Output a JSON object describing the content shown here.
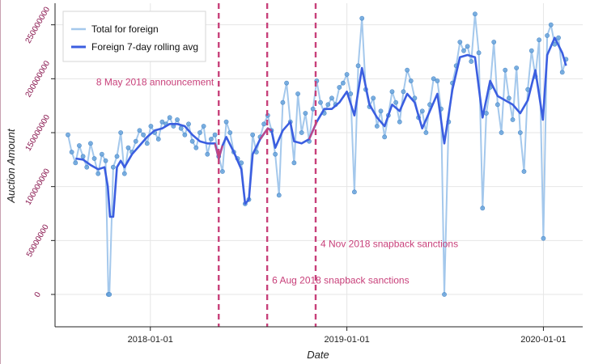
{
  "chart_data": {
    "type": "line",
    "xlabel": "Date",
    "ylabel": "Auction Amount",
    "xlim": [
      "2017-07-08",
      "2020-03-14"
    ],
    "ylim": [
      -30000000,
      270000000
    ],
    "x_ticks": [
      {
        "date": "2018-01-01",
        "label": "2018-01-01"
      },
      {
        "date": "2019-01-01",
        "label": "2019-01-01"
      },
      {
        "date": "2020-01-01",
        "label": "2020-01-01"
      }
    ],
    "y_ticks": [
      {
        "value": 0,
        "label": "0"
      },
      {
        "value": 50000000,
        "label": "50000000"
      },
      {
        "value": 100000000,
        "label": "100000000"
      },
      {
        "value": 150000000,
        "label": "150000000"
      },
      {
        "value": 200000000,
        "label": "200000000"
      },
      {
        "value": 250000000,
        "label": "250000000"
      }
    ],
    "grid": true,
    "legend_position": "top-left",
    "series": [
      {
        "name": "Total for foreign",
        "color": "#a4c8ec",
        "marker_color": "#6aa4dc",
        "points": [
          [
            "2017-08-01",
            148000000
          ],
          [
            "2017-08-08",
            132000000
          ],
          [
            "2017-08-15",
            122000000
          ],
          [
            "2017-08-22",
            138000000
          ],
          [
            "2017-08-29",
            128000000
          ],
          [
            "2017-09-05",
            118000000
          ],
          [
            "2017-09-12",
            140000000
          ],
          [
            "2017-09-19",
            126000000
          ],
          [
            "2017-09-26",
            112000000
          ],
          [
            "2017-10-03",
            130000000
          ],
          [
            "2017-10-10",
            124000000
          ],
          [
            "2017-10-15",
            0
          ],
          [
            "2017-10-17",
            0
          ],
          [
            "2017-10-24",
            118000000
          ],
          [
            "2017-10-31",
            128000000
          ],
          [
            "2017-11-07",
            150000000
          ],
          [
            "2017-11-14",
            112000000
          ],
          [
            "2017-11-21",
            136000000
          ],
          [
            "2017-11-28",
            132000000
          ],
          [
            "2017-12-05",
            142000000
          ],
          [
            "2017-12-12",
            152000000
          ],
          [
            "2017-12-19",
            148000000
          ],
          [
            "2017-12-26",
            140000000
          ],
          [
            "2018-01-02",
            156000000
          ],
          [
            "2018-01-09",
            150000000
          ],
          [
            "2018-01-16",
            144000000
          ],
          [
            "2018-01-23",
            160000000
          ],
          [
            "2018-01-30",
            158000000
          ],
          [
            "2018-02-06",
            164000000
          ],
          [
            "2018-02-13",
            156000000
          ],
          [
            "2018-02-20",
            162000000
          ],
          [
            "2018-02-27",
            154000000
          ],
          [
            "2018-03-06",
            148000000
          ],
          [
            "2018-03-13",
            158000000
          ],
          [
            "2018-03-20",
            142000000
          ],
          [
            "2018-03-27",
            136000000
          ],
          [
            "2018-04-03",
            150000000
          ],
          [
            "2018-04-10",
            156000000
          ],
          [
            "2018-04-17",
            130000000
          ],
          [
            "2018-04-24",
            144000000
          ],
          [
            "2018-05-01",
            148000000
          ],
          [
            "2018-05-08",
            128000000
          ],
          [
            "2018-05-15",
            114000000
          ],
          [
            "2018-05-22",
            160000000
          ],
          [
            "2018-05-29",
            150000000
          ],
          [
            "2018-06-05",
            132000000
          ],
          [
            "2018-06-12",
            126000000
          ],
          [
            "2018-06-19",
            122000000
          ],
          [
            "2018-06-26",
            84000000
          ],
          [
            "2018-07-03",
            88000000
          ],
          [
            "2018-07-10",
            148000000
          ],
          [
            "2018-07-17",
            132000000
          ],
          [
            "2018-07-24",
            146000000
          ],
          [
            "2018-07-31",
            158000000
          ],
          [
            "2018-08-07",
            166000000
          ],
          [
            "2018-08-14",
            152000000
          ],
          [
            "2018-08-21",
            130000000
          ],
          [
            "2018-08-28",
            92000000
          ],
          [
            "2018-09-04",
            178000000
          ],
          [
            "2018-09-11",
            196000000
          ],
          [
            "2018-09-18",
            160000000
          ],
          [
            "2018-09-25",
            122000000
          ],
          [
            "2018-10-02",
            186000000
          ],
          [
            "2018-10-09",
            150000000
          ],
          [
            "2018-10-16",
            168000000
          ],
          [
            "2018-10-23",
            142000000
          ],
          [
            "2018-10-30",
            172000000
          ],
          [
            "2018-11-06",
            198000000
          ],
          [
            "2018-11-13",
            178000000
          ],
          [
            "2018-11-20",
            168000000
          ],
          [
            "2018-11-27",
            176000000
          ],
          [
            "2018-12-04",
            182000000
          ],
          [
            "2018-12-11",
            176000000
          ],
          [
            "2018-12-18",
            192000000
          ],
          [
            "2018-12-25",
            196000000
          ],
          [
            "2019-01-01",
            204000000
          ],
          [
            "2019-01-08",
            186000000
          ],
          [
            "2019-01-15",
            95000000
          ],
          [
            "2019-01-22",
            212000000
          ],
          [
            "2019-01-29",
            256000000
          ],
          [
            "2019-02-05",
            190000000
          ],
          [
            "2019-02-12",
            174000000
          ],
          [
            "2019-02-19",
            182000000
          ],
          [
            "2019-02-26",
            156000000
          ],
          [
            "2019-03-05",
            170000000
          ],
          [
            "2019-03-12",
            146000000
          ],
          [
            "2019-03-19",
            166000000
          ],
          [
            "2019-03-26",
            188000000
          ],
          [
            "2019-04-02",
            178000000
          ],
          [
            "2019-04-09",
            160000000
          ],
          [
            "2019-04-16",
            188000000
          ],
          [
            "2019-04-23",
            208000000
          ],
          [
            "2019-04-30",
            198000000
          ],
          [
            "2019-05-07",
            182000000
          ],
          [
            "2019-05-14",
            164000000
          ],
          [
            "2019-05-21",
            170000000
          ],
          [
            "2019-05-28",
            150000000
          ],
          [
            "2019-06-04",
            176000000
          ],
          [
            "2019-06-11",
            200000000
          ],
          [
            "2019-06-18",
            198000000
          ],
          [
            "2019-06-25",
            172000000
          ],
          [
            "2019-07-01",
            0
          ],
          [
            "2019-07-09",
            160000000
          ],
          [
            "2019-07-16",
            196000000
          ],
          [
            "2019-07-23",
            212000000
          ],
          [
            "2019-07-30",
            234000000
          ],
          [
            "2019-08-06",
            226000000
          ],
          [
            "2019-08-13",
            230000000
          ],
          [
            "2019-08-20",
            216000000
          ],
          [
            "2019-08-27",
            260000000
          ],
          [
            "2019-09-03",
            224000000
          ],
          [
            "2019-09-10",
            80000000
          ],
          [
            "2019-09-17",
            168000000
          ],
          [
            "2019-09-24",
            192000000
          ],
          [
            "2019-10-01",
            234000000
          ],
          [
            "2019-10-08",
            176000000
          ],
          [
            "2019-10-15",
            150000000
          ],
          [
            "2019-10-22",
            208000000
          ],
          [
            "2019-10-29",
            182000000
          ],
          [
            "2019-11-05",
            162000000
          ],
          [
            "2019-11-12",
            210000000
          ],
          [
            "2019-11-19",
            150000000
          ],
          [
            "2019-11-26",
            114000000
          ],
          [
            "2019-12-03",
            190000000
          ],
          [
            "2019-12-10",
            226000000
          ],
          [
            "2019-12-17",
            202000000
          ],
          [
            "2019-12-24",
            236000000
          ],
          [
            "2020-01-01",
            52000000
          ],
          [
            "2020-01-08",
            240000000
          ],
          [
            "2020-01-15",
            250000000
          ],
          [
            "2020-01-22",
            232000000
          ],
          [
            "2020-01-29",
            238000000
          ],
          [
            "2020-02-05",
            206000000
          ],
          [
            "2020-02-12",
            218000000
          ]
        ]
      },
      {
        "name": "Foreign 7-day rolling avg",
        "color": "#3b5ee0",
        "highlight_color": "#e04070",
        "points": [
          [
            "2017-08-15",
            126000000
          ],
          [
            "2017-08-29",
            125000000
          ],
          [
            "2017-09-12",
            120000000
          ],
          [
            "2017-09-26",
            116000000
          ],
          [
            "2017-10-08",
            118000000
          ],
          [
            "2017-10-14",
            100000000
          ],
          [
            "2017-10-18",
            72000000
          ],
          [
            "2017-10-24",
            72000000
          ],
          [
            "2017-10-31",
            118000000
          ],
          [
            "2017-11-07",
            124000000
          ],
          [
            "2017-11-14",
            118000000
          ],
          [
            "2017-11-28",
            130000000
          ],
          [
            "2017-12-12",
            138000000
          ],
          [
            "2017-12-26",
            146000000
          ],
          [
            "2018-01-09",
            152000000
          ],
          [
            "2018-01-23",
            154000000
          ],
          [
            "2018-02-06",
            158000000
          ],
          [
            "2018-02-20",
            158000000
          ],
          [
            "2018-03-06",
            156000000
          ],
          [
            "2018-03-20",
            148000000
          ],
          [
            "2018-04-03",
            142000000
          ],
          [
            "2018-04-17",
            140000000
          ],
          [
            "2018-05-01",
            140000000
          ],
          [
            "2018-05-08",
            126000000
          ],
          [
            "2018-05-15",
            138000000
          ],
          [
            "2018-05-22",
            146000000
          ],
          [
            "2018-06-05",
            132000000
          ],
          [
            "2018-06-19",
            116000000
          ],
          [
            "2018-06-26",
            84000000
          ],
          [
            "2018-07-03",
            88000000
          ],
          [
            "2018-07-10",
            130000000
          ],
          [
            "2018-07-24",
            144000000
          ],
          [
            "2018-08-07",
            154000000
          ],
          [
            "2018-08-14",
            152000000
          ],
          [
            "2018-08-21",
            136000000
          ],
          [
            "2018-09-04",
            152000000
          ],
          [
            "2018-09-18",
            160000000
          ],
          [
            "2018-09-25",
            142000000
          ],
          [
            "2018-10-09",
            140000000
          ],
          [
            "2018-10-23",
            144000000
          ],
          [
            "2018-11-06",
            160000000
          ],
          [
            "2018-11-20",
            172000000
          ],
          [
            "2018-12-04",
            172000000
          ],
          [
            "2018-12-18",
            178000000
          ],
          [
            "2019-01-01",
            188000000
          ],
          [
            "2019-01-15",
            166000000
          ],
          [
            "2019-01-29",
            210000000
          ],
          [
            "2019-02-12",
            176000000
          ],
          [
            "2019-02-26",
            164000000
          ],
          [
            "2019-03-12",
            156000000
          ],
          [
            "2019-03-26",
            176000000
          ],
          [
            "2019-04-09",
            170000000
          ],
          [
            "2019-04-23",
            186000000
          ],
          [
            "2019-05-07",
            178000000
          ],
          [
            "2019-05-21",
            154000000
          ],
          [
            "2019-06-04",
            170000000
          ],
          [
            "2019-06-18",
            186000000
          ],
          [
            "2019-07-01",
            140000000
          ],
          [
            "2019-07-16",
            190000000
          ],
          [
            "2019-07-30",
            220000000
          ],
          [
            "2019-08-13",
            222000000
          ],
          [
            "2019-08-27",
            220000000
          ],
          [
            "2019-09-10",
            164000000
          ],
          [
            "2019-09-24",
            198000000
          ],
          [
            "2019-10-08",
            184000000
          ],
          [
            "2019-10-22",
            180000000
          ],
          [
            "2019-11-05",
            176000000
          ],
          [
            "2019-11-19",
            168000000
          ],
          [
            "2019-12-03",
            180000000
          ],
          [
            "2019-12-17",
            208000000
          ],
          [
            "2019-12-31",
            162000000
          ],
          [
            "2020-01-08",
            222000000
          ],
          [
            "2020-01-22",
            238000000
          ],
          [
            "2020-02-05",
            224000000
          ],
          [
            "2020-02-12",
            212000000
          ]
        ],
        "highlight_ranges": [
          [
            "2018-04-24",
            "2018-05-15"
          ],
          [
            "2018-07-24",
            "2018-08-14"
          ],
          [
            "2018-10-16",
            "2018-11-06"
          ]
        ]
      }
    ],
    "annotations": [
      {
        "date": "2018-05-08",
        "label": "8 May 2018 announcement",
        "label_value": 194000000,
        "align": "end"
      },
      {
        "date": "2018-08-06",
        "label": "6 Aug 2018 snapback sanctions",
        "label_value": 10000000,
        "align": "start"
      },
      {
        "date": "2018-11-04",
        "label": "4 Nov 2018 snapback sanctions",
        "label_value": 44000000,
        "align": "start"
      }
    ],
    "vline_color": "#c8407a"
  }
}
